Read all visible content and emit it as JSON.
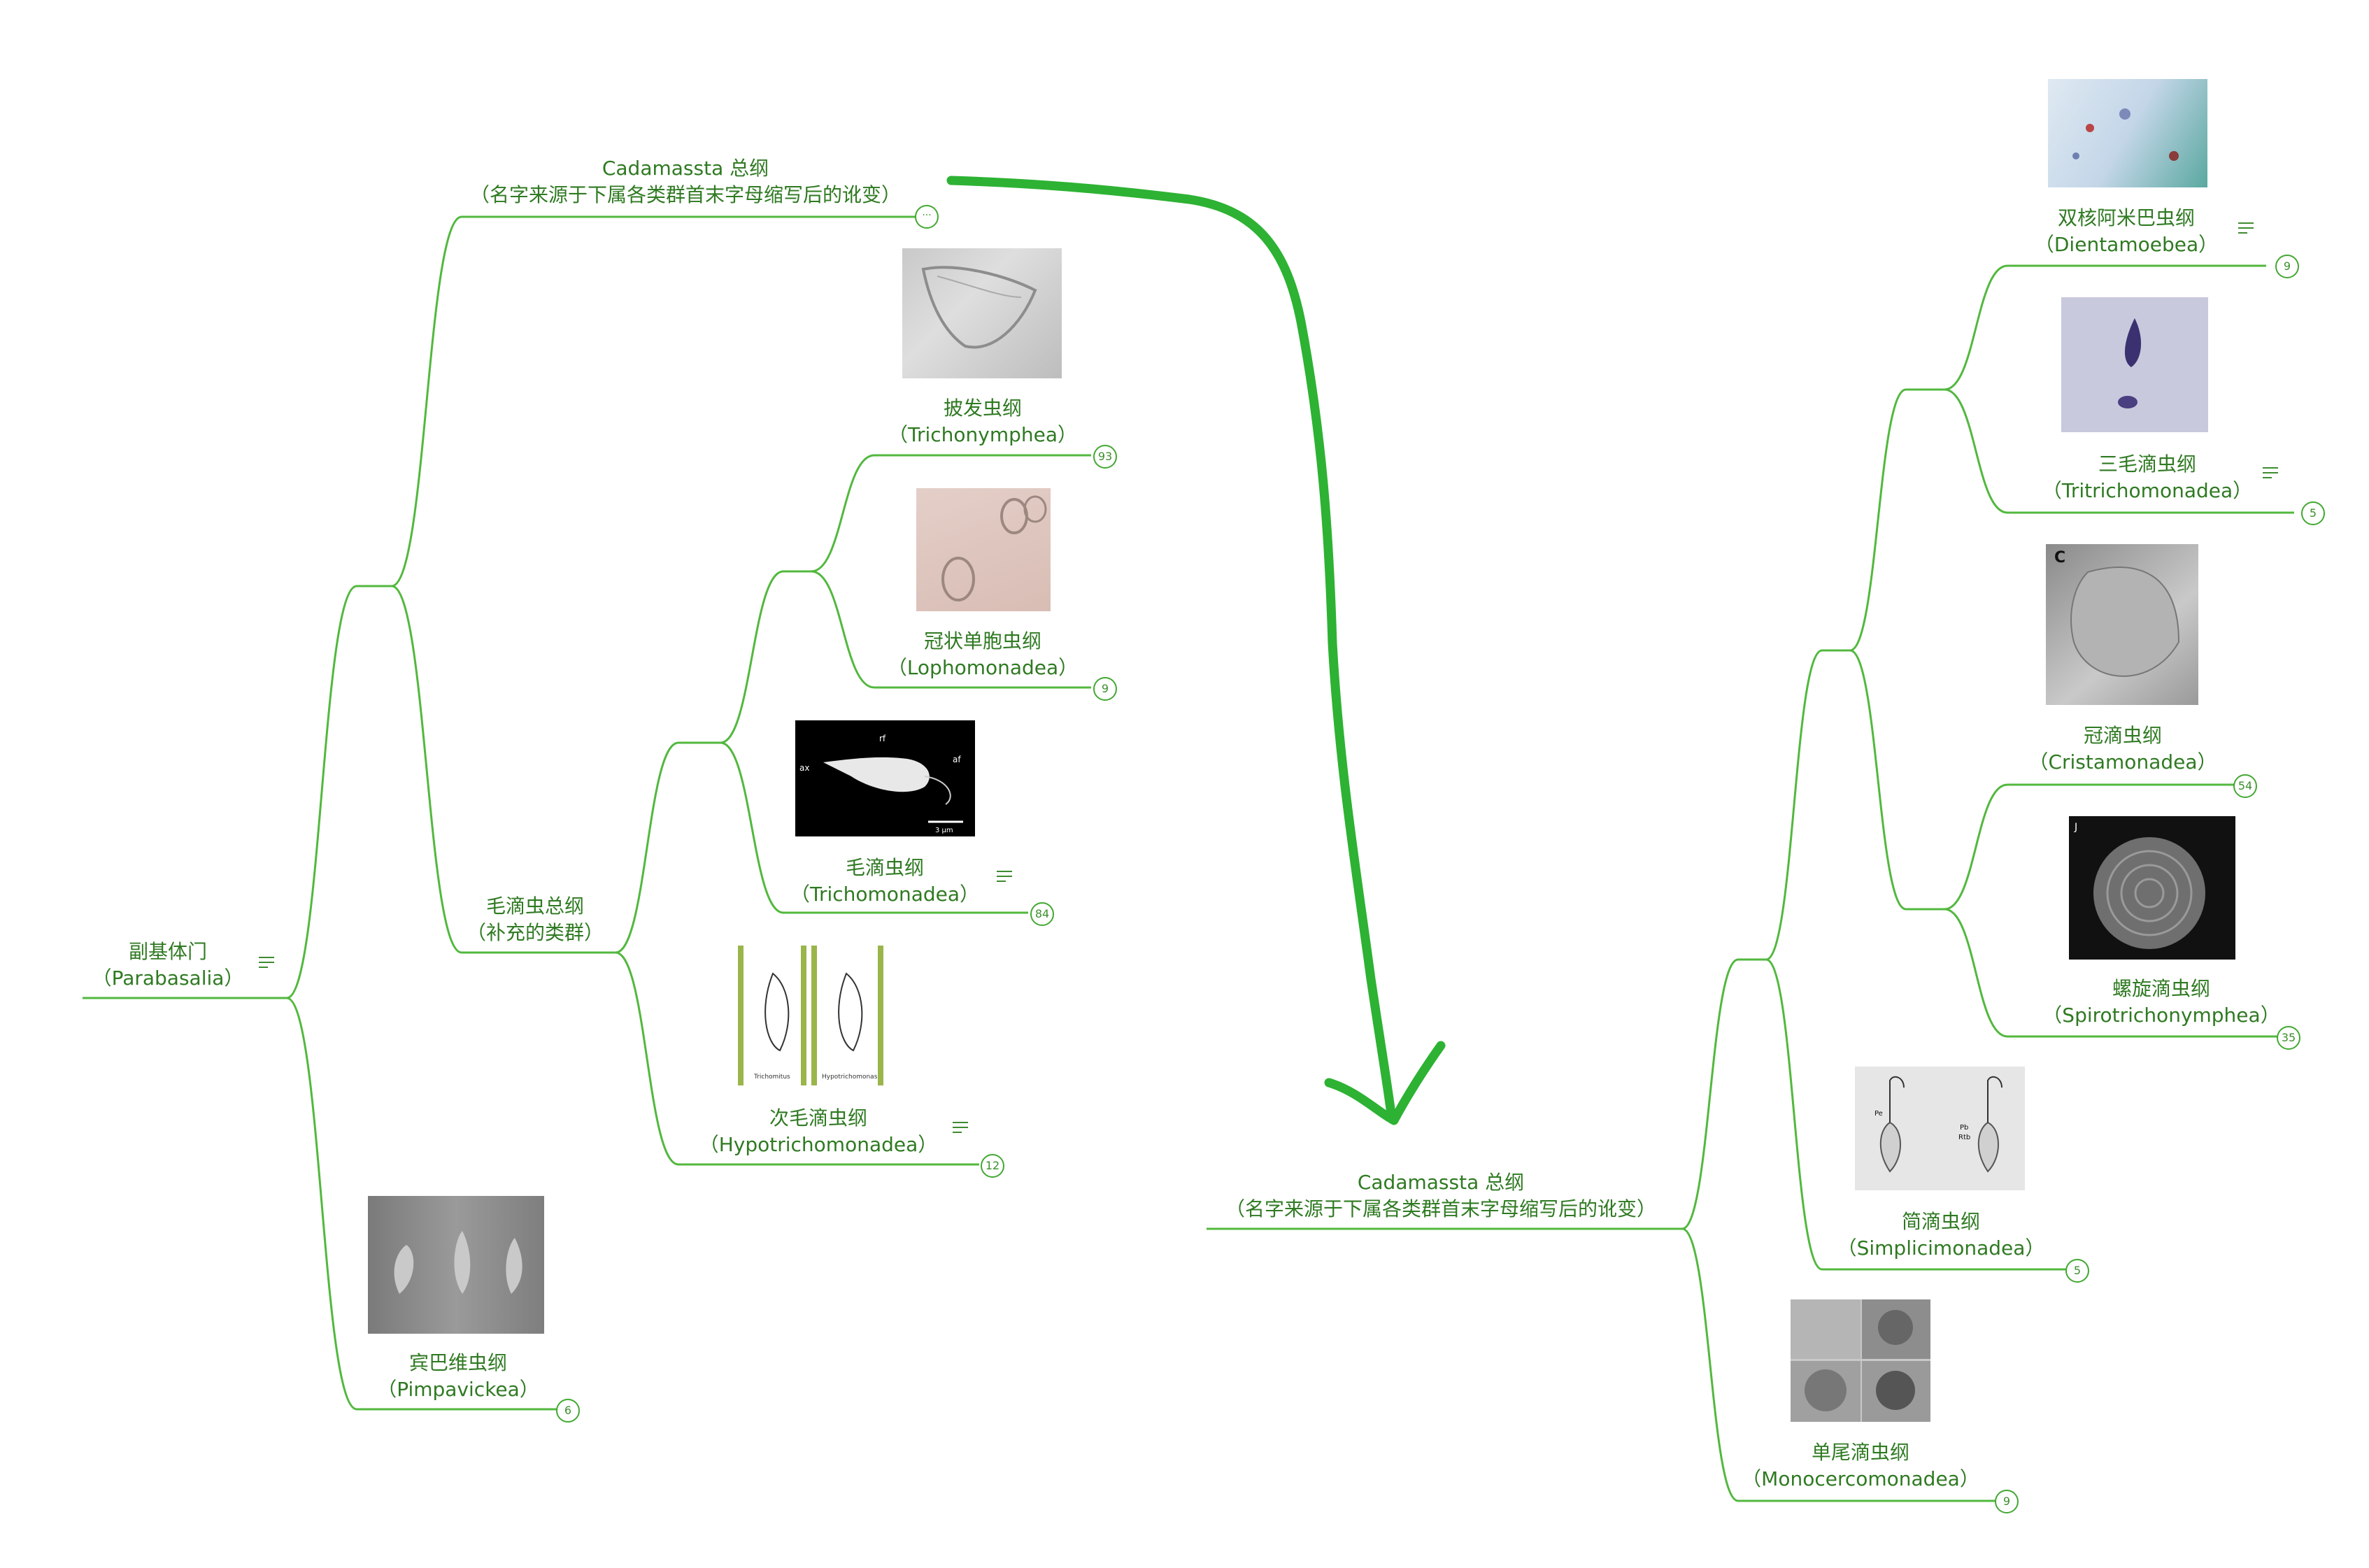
{
  "map": {
    "root": {
      "name": "副基体门",
      "latin": "（Parabasalia）"
    },
    "cadamassta_left": {
      "name": "Cadamassta 总纲",
      "desc": "（名字来源于下属各类群首末字母缩写后的讹变）",
      "collapsed_marker": "···"
    },
    "trichomonada_super": {
      "name": "毛滴虫总纲",
      "desc": "（补充的类群）"
    },
    "trichonymphea": {
      "name": "披发虫纲",
      "latin": "（Trichonymphea）",
      "count": "93"
    },
    "lophomonadea": {
      "name": "冠状单胞虫纲",
      "latin": "（Lophomonadea）",
      "count": "9"
    },
    "trichomonadea": {
      "name": "毛滴虫纲",
      "latin": "（Trichomonadea）",
      "count": "84",
      "image_labels": {
        "ax": "ax",
        "rf": "rf",
        "af": "af",
        "scale": "3 μm"
      }
    },
    "hypotrichomonadea": {
      "name": "次毛滴虫纲",
      "latin": "（Hypotrichomonadea）",
      "count": "12",
      "image_labels": {
        "left": "Trichomitus",
        "right": "Hypotrichomonas"
      }
    },
    "pimpavickea": {
      "name": "宾巴维虫纲",
      "latin": "（Pimpavickea）",
      "count": "6"
    },
    "cadamassta_right": {
      "name": "Cadamassta 总纲",
      "desc": "（名字来源于下属各类群首末字母缩写后的讹变）"
    },
    "dientamoebea": {
      "name": "双核阿米巴虫纲",
      "latin": "（Dientamoebea）",
      "count": "9"
    },
    "tritrichomonadea": {
      "name": "三毛滴虫纲",
      "latin": "（Tritrichomonadea）",
      "count": "5"
    },
    "cristamonadea": {
      "name": "冠滴虫纲",
      "latin": "（Cristamonadea）",
      "count": "54",
      "image_label": "C"
    },
    "spirotrichonymphea": {
      "name": "螺旋滴虫纲",
      "latin": "（Spirotrichonymphea）",
      "count": "35",
      "image_label": "J"
    },
    "simplicimonadea": {
      "name": "简滴虫纲",
      "latin": "（Simplicimonadea）",
      "count": "5",
      "image_labels": {
        "pe": "Pe",
        "pb": "Pb",
        "rtb": "Rtb"
      }
    },
    "monocercomonadea": {
      "name": "单尾滴虫纲",
      "latin": "（Monocercomonadea）",
      "count": "9"
    }
  },
  "colors": {
    "branch": "#52b83e",
    "text": "#2f7a22",
    "arrow": "#2db233"
  }
}
